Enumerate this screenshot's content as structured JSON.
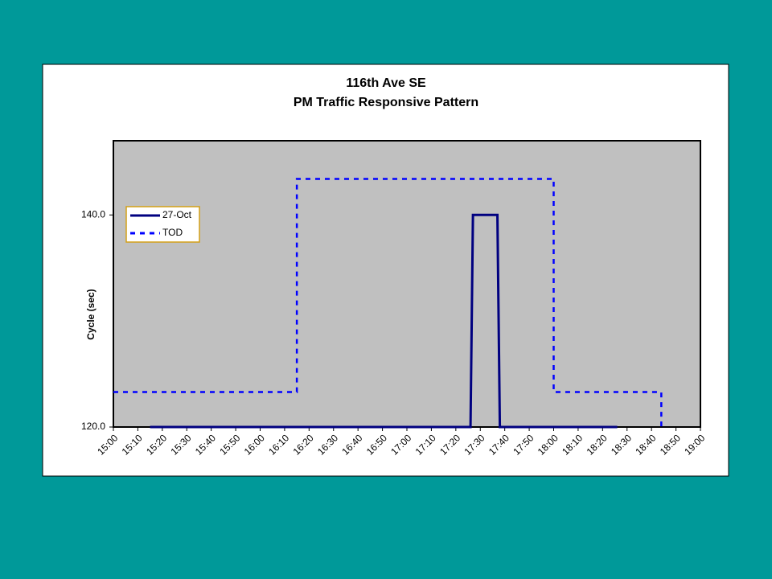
{
  "chart_data": {
    "type": "line",
    "title": "116th Ave SE",
    "subtitle": "PM Traffic Responsive Pattern",
    "y_label": "Cycle (sec)",
    "xlim": [
      "15:00",
      "19:00"
    ],
    "xticks": [
      "15:00",
      "15:10",
      "15:20",
      "15:30",
      "15:40",
      "15:50",
      "16:00",
      "16:10",
      "16:20",
      "16:30",
      "16:40",
      "16:50",
      "17:00",
      "17:10",
      "17:20",
      "17:30",
      "17:40",
      "17:50",
      "18:00",
      "18:10",
      "18:20",
      "18:30",
      "18:40",
      "18:50",
      "19:00"
    ],
    "ylim": [
      120,
      147
    ],
    "yticks": [
      {
        "value": 120,
        "label": "120.0"
      },
      {
        "value": 140,
        "label": "140.0"
      }
    ],
    "legend": "upper left",
    "grid": false,
    "series": [
      {
        "name": "27-Oct",
        "color": "#000080",
        "dash": false,
        "x": [
          "15:15",
          "17:26",
          "17:27",
          "17:37",
          "17:38",
          "18:26"
        ],
        "values": [
          120,
          120,
          140,
          140,
          120,
          120
        ]
      },
      {
        "name": "TOD",
        "color": "#0000ff",
        "dash": true,
        "x": [
          "15:00",
          "16:15",
          "16:15",
          "18:00",
          "18:00",
          "18:44",
          "18:44"
        ],
        "values": [
          123.3,
          123.3,
          143.4,
          143.4,
          123.3,
          123.3,
          120
        ]
      }
    ]
  }
}
